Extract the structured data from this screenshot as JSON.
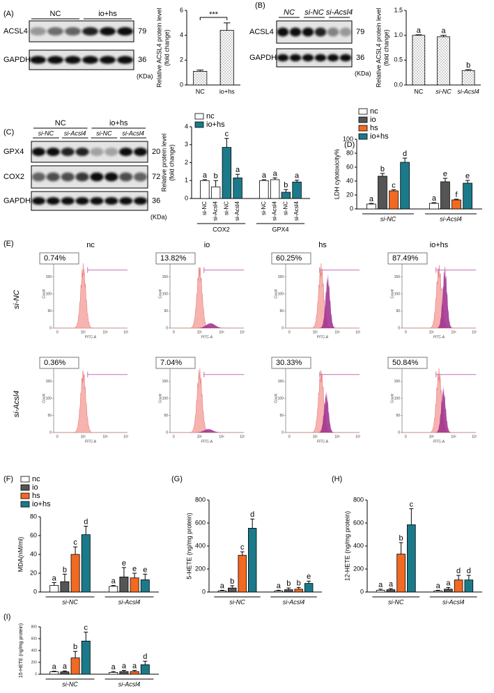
{
  "blots": [
    {
      "panel": "(A)",
      "groups": [
        "NC",
        "io+hs"
      ],
      "rows": [
        "ACSL4",
        "GAPDH"
      ],
      "sizes": [
        "79",
        "36"
      ],
      "unit": "(KDa)"
    },
    {
      "panel": "(B)",
      "groups": [
        "NC",
        "si-NC",
        "si-Acsl4"
      ],
      "rows": [
        "ACSL4",
        "GAPDH"
      ],
      "sizes": [
        "79",
        "36"
      ],
      "unit": "(KDa)"
    },
    {
      "panel": "(C)",
      "groups": [
        "NC",
        "io+hs"
      ],
      "subgroups": [
        "si-NC",
        "si-Acsl4",
        "si-NC",
        "si-Acsl4"
      ],
      "rows": [
        "GPX4",
        "COX2",
        "GAPDH"
      ],
      "sizes": [
        "20",
        "72",
        "36"
      ],
      "unit": "(KDa)"
    }
  ],
  "flow": {
    "panel": "(E)",
    "columns": [
      "nc",
      "io",
      "hs",
      "io+hs"
    ],
    "rows": [
      "si-NC",
      "si-Acsl4"
    ],
    "percent": [
      [
        "0.74%",
        "13.82%",
        "60.25%",
        "87.49%"
      ],
      [
        "0.36%",
        "7.04%",
        "30.33%",
        "50.84%"
      ]
    ],
    "yticks": [
      0,
      50,
      100,
      150,
      200
    ],
    "xticks": [
      "0",
      "10⁵",
      "10⁶",
      "10⁷"
    ],
    "ylabel": "Count",
    "xlabel": "FITC-A"
  },
  "chart_data": [
    {
      "type": "bar",
      "ylabel": [
        "Relative ACSL4 protein level",
        "(fold change)"
      ],
      "categories": [
        "NC",
        "io+hs"
      ],
      "values": [
        1.1,
        4.4
      ],
      "errors": [
        0.1,
        0.6
      ],
      "color": "#ffffff",
      "pattern": "dotted",
      "ylim": [
        0,
        6
      ],
      "yticks": [
        0,
        2,
        4,
        6
      ],
      "annotation": "***"
    },
    {
      "type": "bar",
      "ylabel": [
        "Relative ACSL4 protein level",
        "(fold change)"
      ],
      "categories": [
        "NC",
        "si-NC",
        "si-Acsl4"
      ],
      "values": [
        1.0,
        0.97,
        0.29
      ],
      "errors": [
        0.01,
        0.03,
        0.02
      ],
      "letters": [
        "a",
        "a",
        "b"
      ],
      "color": "#ffffff",
      "pattern": "dotted",
      "ylim": [
        0,
        1.5
      ],
      "yticks": [
        {
          "value": 0,
          "label": "0.0"
        },
        0.5,
        {
          "value": 1,
          "label": "1.0"
        },
        1.5
      ]
    },
    {
      "type": "bar",
      "ylabel": [
        "Relative protein level",
        "(fold change)"
      ],
      "groups": [
        "COX2",
        "GPX4"
      ],
      "subgroups": [
        "si-NC",
        "si-Acsl4"
      ],
      "series": [
        {
          "name": "nc",
          "color": "#ffffff",
          "values": [
            1.0,
            0.65,
            1.0,
            1.05
          ],
          "errors": [
            0.05,
            0.35,
            0.05,
            0.1
          ],
          "letters": [
            "a",
            "b",
            "a",
            "a"
          ]
        },
        {
          "name": "io+hs",
          "color": "#1b7a8a",
          "values": [
            2.85,
            1.15,
            0.35,
            0.92
          ],
          "errors": [
            0.5,
            0.2,
            0.15,
            0.1
          ],
          "letters": [
            "c",
            "a",
            "b",
            "a"
          ]
        }
      ],
      "ylim": [
        0,
        4
      ],
      "yticks": [
        0,
        1,
        2,
        3,
        4
      ],
      "legend": "upper left"
    },
    {
      "type": "bar",
      "panel": "(D)",
      "ylabel": [
        "LDH cytotoxicity%"
      ],
      "groups": [
        "si-NC",
        "si-Acsl4"
      ],
      "series": [
        {
          "name": "nc",
          "color": "#ffffff",
          "values": [
            7,
            8
          ],
          "errors": [
            1,
            1
          ],
          "letters": [
            "a",
            "a"
          ]
        },
        {
          "name": "io",
          "color": "#555555",
          "values": [
            47,
            39
          ],
          "errors": [
            4,
            5
          ],
          "letters": [
            "b",
            "e"
          ]
        },
        {
          "name": "hs",
          "color": "#f26a21",
          "values": [
            26,
            13
          ],
          "errors": [
            1.5,
            1
          ],
          "letters": [
            "c",
            "f"
          ]
        },
        {
          "name": "io+hs",
          "color": "#1b7a8a",
          "values": [
            67,
            37
          ],
          "errors": [
            6,
            4
          ],
          "letters": [
            "d",
            "e"
          ]
        }
      ],
      "ylim": [
        0,
        100
      ],
      "yticks": [
        0,
        20,
        40,
        60,
        80,
        100
      ],
      "legend": "upper left"
    },
    {
      "type": "bar",
      "panel": "(F)",
      "ylabel": [
        "MDA(nM/ml)"
      ],
      "groups": [
        "si-NC",
        "si-Acsl4"
      ],
      "series": [
        {
          "name": "nc",
          "color": "#ffffff",
          "values": [
            7,
            6
          ],
          "errors": [
            3,
            1
          ],
          "letters": [
            "a",
            "a"
          ]
        },
        {
          "name": "io",
          "color": "#555555",
          "values": [
            11,
            16
          ],
          "errors": [
            8,
            10
          ],
          "letters": [
            "b",
            "e"
          ]
        },
        {
          "name": "hs",
          "color": "#f26a21",
          "values": [
            40,
            15
          ],
          "errors": [
            8,
            5
          ],
          "letters": [
            "c",
            "e"
          ]
        },
        {
          "name": "io+hs",
          "color": "#1b7a8a",
          "values": [
            61,
            13
          ],
          "errors": [
            9,
            6
          ],
          "letters": [
            "d",
            "e"
          ]
        }
      ],
      "ylim": [
        0,
        80
      ],
      "yticks": [
        0,
        20,
        40,
        60,
        80
      ],
      "legend": "upper left"
    },
    {
      "type": "bar",
      "panel": "(G)",
      "ylabel": [
        "5-HETE (ng/mg protein)"
      ],
      "groups": [
        "si-NC",
        "si-Acsl4"
      ],
      "series": [
        {
          "name": "nc",
          "color": "#ffffff",
          "values": [
            10,
            10
          ],
          "errors": [
            5,
            5
          ],
          "letters": [
            "a",
            "a"
          ]
        },
        {
          "name": "io",
          "color": "#555555",
          "values": [
            35,
            20
          ],
          "errors": [
            20,
            15
          ],
          "letters": [
            "b",
            "b"
          ]
        },
        {
          "name": "hs",
          "color": "#f26a21",
          "values": [
            320,
            25
          ],
          "errors": [
            30,
            15
          ],
          "letters": [
            "c",
            "b"
          ]
        },
        {
          "name": "io+hs",
          "color": "#1b7a8a",
          "values": [
            555,
            75
          ],
          "errors": [
            80,
            20
          ],
          "letters": [
            "d",
            "e"
          ]
        }
      ],
      "ylim": [
        0,
        800
      ],
      "yticks": [
        0,
        200,
        400,
        600,
        800
      ]
    },
    {
      "type": "bar",
      "panel": "(H)",
      "ylabel": [
        "12-HETE (ng/mg protein)"
      ],
      "groups": [
        "si-NC",
        "si-Acsl4"
      ],
      "series": [
        {
          "name": "nc",
          "color": "#ffffff",
          "values": [
            15,
            10
          ],
          "errors": [
            10,
            5
          ],
          "letters": [
            "a",
            "a"
          ]
        },
        {
          "name": "io",
          "color": "#555555",
          "values": [
            20,
            25
          ],
          "errors": [
            10,
            15
          ],
          "letters": [
            "a",
            "a"
          ]
        },
        {
          "name": "hs",
          "color": "#f26a21",
          "values": [
            330,
            105
          ],
          "errors": [
            100,
            40
          ],
          "letters": [
            "b",
            "d"
          ]
        },
        {
          "name": "io+hs",
          "color": "#1b7a8a",
          "values": [
            585,
            105
          ],
          "errors": [
            140,
            40
          ],
          "letters": [
            "c",
            "d"
          ]
        }
      ],
      "ylim": [
        0,
        800
      ],
      "yticks": [
        0,
        200,
        400,
        600,
        800
      ]
    },
    {
      "type": "bar",
      "panel": "(I)",
      "ylabel": [
        "15-HETE (ng/mg protein)"
      ],
      "groups": [
        "si-NC",
        "si-Acsl4"
      ],
      "series": [
        {
          "name": "nc",
          "color": "#ffffff",
          "values": [
            40,
            30
          ],
          "errors": [
            10,
            15
          ],
          "letters": [
            "a",
            "a"
          ]
        },
        {
          "name": "io",
          "color": "#555555",
          "values": [
            40,
            45
          ],
          "errors": [
            15,
            20
          ],
          "letters": [
            "a",
            "a"
          ]
        },
        {
          "name": "hs",
          "color": "#f26a21",
          "values": [
            275,
            45
          ],
          "errors": [
            110,
            20
          ],
          "letters": [
            "b",
            "a"
          ]
        },
        {
          "name": "io+hs",
          "color": "#1b7a8a",
          "values": [
            560,
            160
          ],
          "errors": [
            150,
            60
          ],
          "letters": [
            "c",
            "d"
          ]
        }
      ],
      "ylim": [
        0,
        800
      ],
      "yticks": [
        0,
        200,
        400,
        600,
        800
      ]
    }
  ]
}
